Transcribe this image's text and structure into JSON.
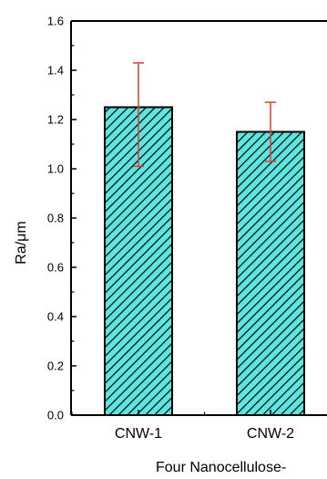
{
  "chart_data": {
    "type": "bar",
    "title": "",
    "xlabel": "Four Nanocellulose-",
    "ylabel": "Ra/μm",
    "categories": [
      "CNW-1",
      "CNW-2"
    ],
    "values": [
      1.25,
      1.15
    ],
    "error_low": [
      1.01,
      1.03
    ],
    "error_high": [
      1.43,
      1.27
    ],
    "ylim": [
      0,
      1.6
    ],
    "yticks": [
      "0.0",
      "0.2",
      "0.4",
      "0.6",
      "0.8",
      "1.0",
      "1.2",
      "1.4",
      "1.6"
    ],
    "grid": false,
    "bar_fill": "#5ce6df",
    "bar_hatch": "#000000",
    "error_color": "#e8382f",
    "axis_color": "#000000"
  }
}
